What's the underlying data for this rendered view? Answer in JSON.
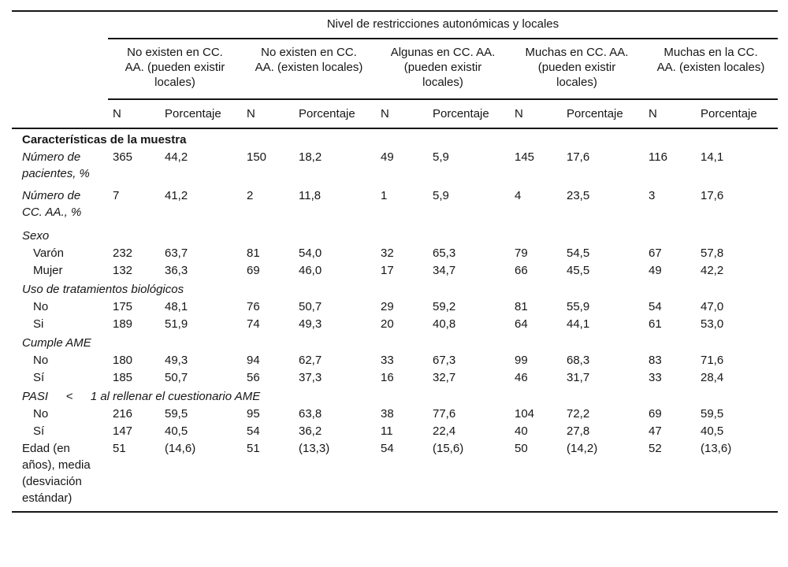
{
  "page": {
    "background_color": "#ffffff",
    "text_color": "#161616",
    "rule_color": "#161616"
  },
  "table": {
    "spanner_title": "Nivel de restricciones autonómicas y locales",
    "column_groups": [
      "No existen en CC. AA. (pueden existir locales)",
      "No existen en CC. AA. (existen locales)",
      "Algunas en CC. AA. (pueden existir locales)",
      "Muchas en CC. AA. (pueden existir locales)",
      "Muchas en la CC. AA. (existen locales)"
    ],
    "subheaders": {
      "n": "N",
      "pct": "Porcentaje"
    },
    "rows": [
      {
        "type": "section",
        "bold": true,
        "italic": false,
        "label": "Características de la muestra"
      },
      {
        "type": "data",
        "italic": true,
        "indent": false,
        "label": "Número de pacientes, %",
        "cells": [
          "365",
          "44,2",
          "150",
          "18,2",
          "49",
          "5,9",
          "145",
          "17,6",
          "116",
          "14,1"
        ]
      },
      {
        "type": "data",
        "italic": true,
        "indent": false,
        "label": "Número de CC. AA., %",
        "cells": [
          "7",
          "41,2",
          "2",
          "11,8",
          "1",
          "5,9",
          "4",
          "23,5",
          "3",
          "17,6"
        ]
      },
      {
        "type": "section",
        "bold": false,
        "italic": true,
        "label": "Sexo"
      },
      {
        "type": "data",
        "italic": false,
        "indent": true,
        "label": "Varón",
        "cells": [
          "232",
          "63,7",
          "81",
          "54,0",
          "32",
          "65,3",
          "79",
          "54,5",
          "67",
          "57,8"
        ]
      },
      {
        "type": "data",
        "italic": false,
        "indent": true,
        "label": "Mujer",
        "cells": [
          "132",
          "36,3",
          "69",
          "46,0",
          "17",
          "34,7",
          "66",
          "45,5",
          "49",
          "42,2"
        ]
      },
      {
        "type": "section",
        "bold": false,
        "italic": true,
        "label": "Uso de tratamientos biológicos"
      },
      {
        "type": "data",
        "italic": false,
        "indent": true,
        "label": "No",
        "cells": [
          "175",
          "48,1",
          "76",
          "50,7",
          "29",
          "59,2",
          "81",
          "55,9",
          "54",
          "47,0"
        ]
      },
      {
        "type": "data",
        "italic": false,
        "indent": true,
        "label": "Si",
        "cells": [
          "189",
          "51,9",
          "74",
          "49,3",
          "20",
          "40,8",
          "64",
          "44,1",
          "61",
          "53,0"
        ]
      },
      {
        "type": "section",
        "bold": false,
        "italic": true,
        "label": "Cumple AME"
      },
      {
        "type": "data",
        "italic": false,
        "indent": true,
        "label": "No",
        "cells": [
          "180",
          "49,3",
          "94",
          "62,7",
          "33",
          "67,3",
          "99",
          "68,3",
          "83",
          "71,6"
        ]
      },
      {
        "type": "data",
        "italic": false,
        "indent": true,
        "label": "Sí",
        "cells": [
          "185",
          "50,7",
          "56",
          "37,3",
          "16",
          "32,7",
          "46",
          "31,7",
          "33",
          "28,4"
        ]
      },
      {
        "type": "section",
        "bold": false,
        "italic": true,
        "label": "PASI  <  1 al rellenar el cuestionario AME"
      },
      {
        "type": "data",
        "italic": false,
        "indent": true,
        "label": "No",
        "cells": [
          "216",
          "59,5",
          "95",
          "63,8",
          "38",
          "77,6",
          "104",
          "72,2",
          "69",
          "59,5"
        ]
      },
      {
        "type": "data",
        "italic": false,
        "indent": true,
        "label": "Sí",
        "cells": [
          "147",
          "40,5",
          "54",
          "36,2",
          "11",
          "22,4",
          "40",
          "27,8",
          "47",
          "40,5"
        ]
      },
      {
        "type": "data",
        "italic": false,
        "indent": false,
        "label": "Edad (en años), media (desviación estándar)",
        "cells": [
          "51",
          "(14,6)",
          "51",
          "(13,3)",
          "54",
          "(15,6)",
          "50",
          "(14,2)",
          "52",
          "(13,6)"
        ]
      }
    ]
  }
}
